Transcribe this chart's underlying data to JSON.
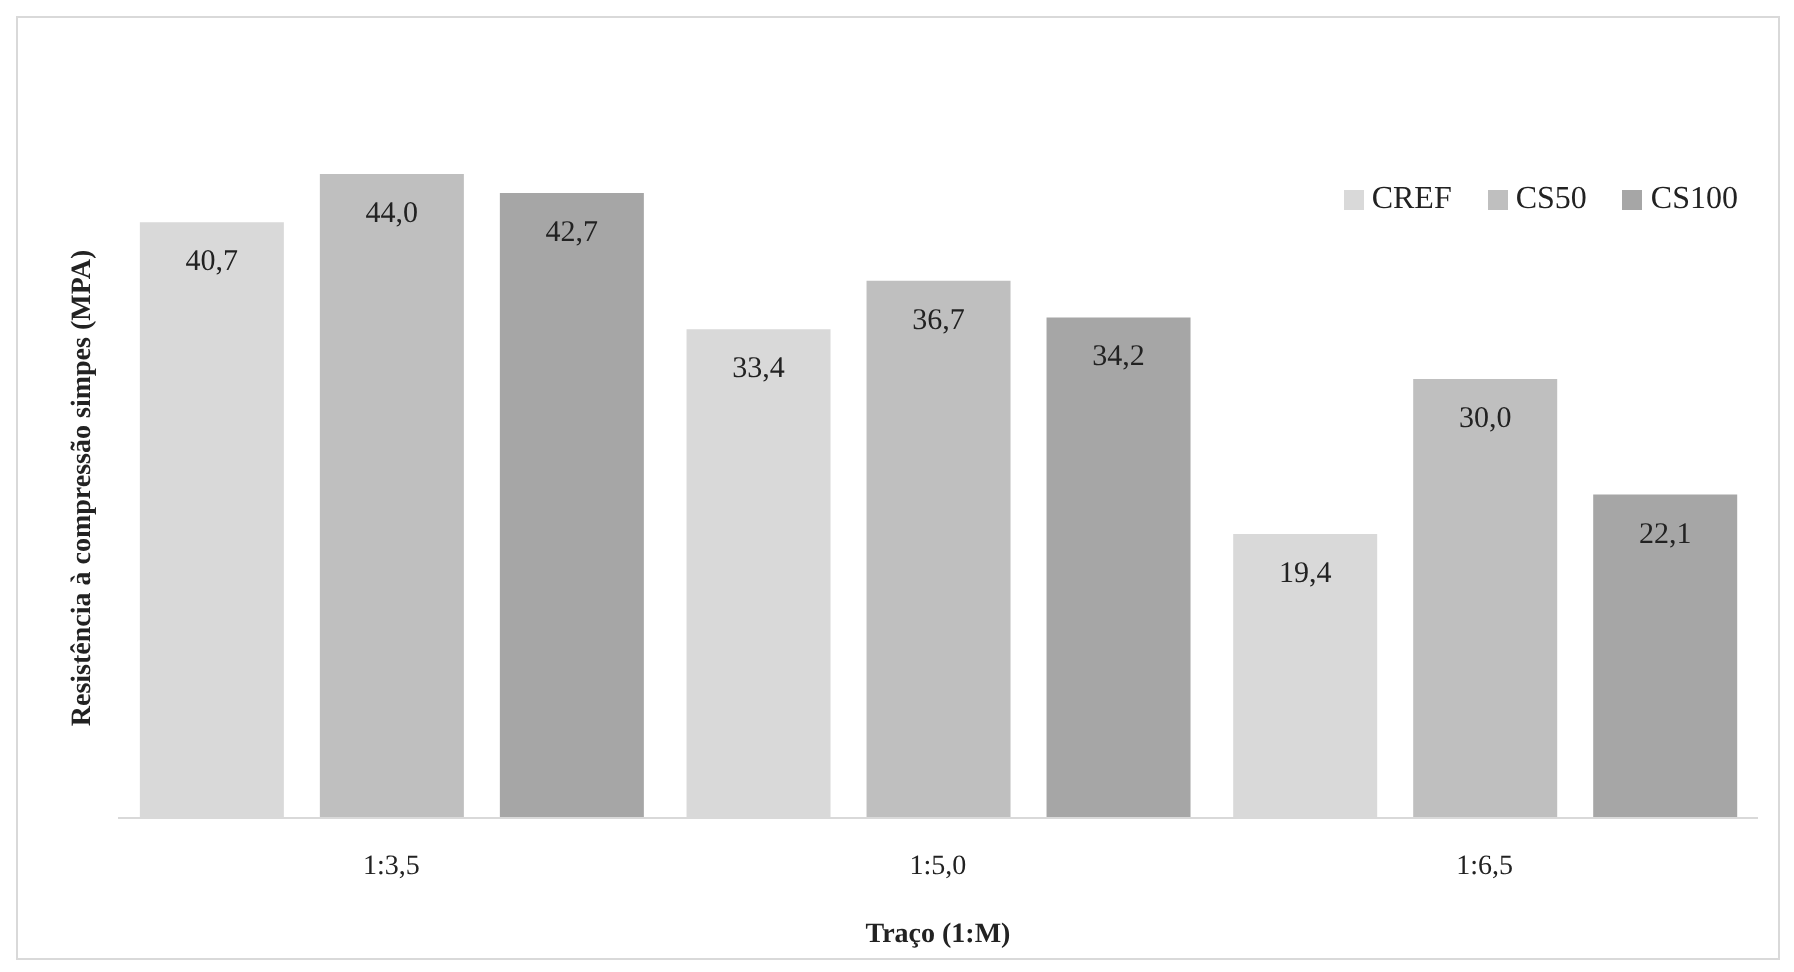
{
  "chart_data": {
    "type": "bar",
    "xlabel": "Traço (1:M)",
    "ylabel": "Resistência à compressão simpes (MPA)",
    "categories": [
      "1:3,5",
      "1:5,0",
      "1:6,5"
    ],
    "series": [
      {
        "name": "CREF",
        "color": "#d9d9d9",
        "values": [
          40.7,
          33.4,
          19.4
        ],
        "value_labels": [
          "40,7",
          "33,4",
          "19,4"
        ]
      },
      {
        "name": "CS50",
        "color": "#bfbfbf",
        "values": [
          44.0,
          36.7,
          30.0
        ],
        "value_labels": [
          "44,0",
          "36,7",
          "30,0"
        ]
      },
      {
        "name": "CS100",
        "color": "#a6a6a6",
        "values": [
          42.7,
          34.2,
          22.1
        ],
        "value_labels": [
          "42,7",
          "34,2",
          "22,1"
        ]
      }
    ],
    "legend": "top right",
    "grid": false
  }
}
